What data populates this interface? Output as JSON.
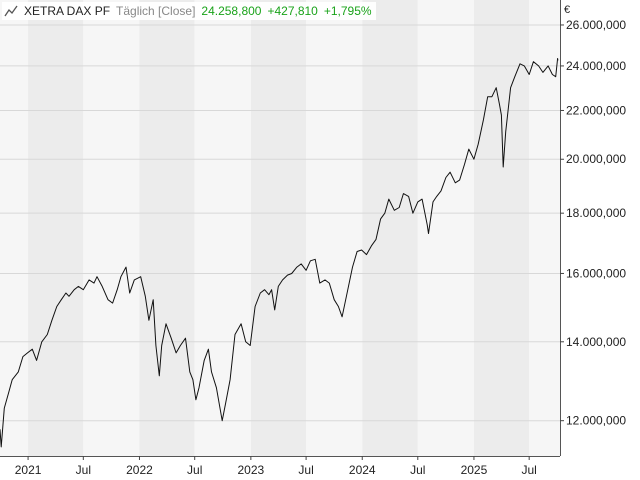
{
  "legend": {
    "icon": "line-chart-icon",
    "name": "XETRA DAX PF",
    "period": "Täglich [Close]",
    "value": "24.258,800",
    "change": "+427,810",
    "percent": "+1,795%"
  },
  "colors": {
    "band_dark": "#ececec",
    "band_light": "#f6f6f6",
    "line": "#111111",
    "grid": "#d8d8d8",
    "positive": "#1aa31a"
  },
  "chart_data": {
    "type": "line",
    "title": "",
    "xlabel": "",
    "ylabel": "€",
    "y_scale": "log",
    "ylim": [
      11200,
      27300
    ],
    "xlim": [
      "2020-10-01",
      "2025-10-10"
    ],
    "grid": true,
    "y_ticks": [
      {
        "value": 12000,
        "label": "12.000,000"
      },
      {
        "value": 14000,
        "label": "14.000,000"
      },
      {
        "value": 16000,
        "label": "16.000,000"
      },
      {
        "value": 18000,
        "label": "18.000,000"
      },
      {
        "value": 20000,
        "label": "20.000,000"
      },
      {
        "value": 22000,
        "label": "22.000,000"
      },
      {
        "value": 24000,
        "label": "24.000,000"
      },
      {
        "value": 26000,
        "label": "26.000,000"
      }
    ],
    "x_ticks": [
      {
        "date": "2021-01-01",
        "label": "2021"
      },
      {
        "date": "2021-07-01",
        "label": "Jul"
      },
      {
        "date": "2022-01-01",
        "label": "2022"
      },
      {
        "date": "2022-07-01",
        "label": "Jul"
      },
      {
        "date": "2023-01-01",
        "label": "2023"
      },
      {
        "date": "2023-07-01",
        "label": "Jul"
      },
      {
        "date": "2024-01-01",
        "label": "2024"
      },
      {
        "date": "2024-07-01",
        "label": "Jul"
      },
      {
        "date": "2025-01-01",
        "label": "2025"
      },
      {
        "date": "2025-07-01",
        "label": "Jul"
      }
    ],
    "series": [
      {
        "x": [
          "2020-10-01",
          "2020-10-05",
          "2020-10-15",
          "2020-10-30",
          "2020-11-10",
          "2020-11-30",
          "2020-12-15",
          "2020-12-30",
          "2021-01-15",
          "2021-01-29",
          "2021-02-15",
          "2021-03-05",
          "2021-03-20",
          "2021-04-05",
          "2021-04-20",
          "2021-05-05",
          "2021-05-15",
          "2021-06-01",
          "2021-06-15",
          "2021-07-01",
          "2021-07-20",
          "2021-08-05",
          "2021-08-15",
          "2021-09-01",
          "2021-09-20",
          "2021-10-05",
          "2021-10-20",
          "2021-11-01",
          "2021-11-18",
          "2021-11-30",
          "2021-12-15",
          "2022-01-05",
          "2022-01-20",
          "2022-02-01",
          "2022-02-15",
          "2022-02-24",
          "2022-03-07",
          "2022-03-15",
          "2022-03-29",
          "2022-04-15",
          "2022-05-01",
          "2022-05-15",
          "2022-06-01",
          "2022-06-15",
          "2022-06-25",
          "2022-07-05",
          "2022-07-15",
          "2022-08-01",
          "2022-08-15",
          "2022-08-25",
          "2022-09-10",
          "2022-09-29",
          "2022-10-10",
          "2022-10-25",
          "2022-11-10",
          "2022-11-30",
          "2022-12-15",
          "2022-12-30",
          "2023-01-15",
          "2023-02-01",
          "2023-02-15",
          "2023-03-01",
          "2023-03-10",
          "2023-03-20",
          "2023-04-01",
          "2023-04-15",
          "2023-05-01",
          "2023-05-15",
          "2023-06-01",
          "2023-06-15",
          "2023-07-01",
          "2023-07-15",
          "2023-07-31",
          "2023-08-15",
          "2023-09-01",
          "2023-09-15",
          "2023-10-01",
          "2023-10-15",
          "2023-10-27",
          "2023-11-10",
          "2023-11-30",
          "2023-12-15",
          "2023-12-30",
          "2024-01-15",
          "2024-02-01",
          "2024-02-15",
          "2024-03-01",
          "2024-03-15",
          "2024-03-28",
          "2024-04-15",
          "2024-05-01",
          "2024-05-15",
          "2024-06-01",
          "2024-06-15",
          "2024-07-01",
          "2024-07-15",
          "2024-08-01",
          "2024-08-05",
          "2024-08-20",
          "2024-09-01",
          "2024-09-15",
          "2024-10-01",
          "2024-10-15",
          "2024-11-01",
          "2024-11-15",
          "2024-12-01",
          "2024-12-15",
          "2025-01-01",
          "2025-01-15",
          "2025-02-01",
          "2025-02-15",
          "2025-03-01",
          "2025-03-15",
          "2025-03-25",
          "2025-04-01",
          "2025-04-07",
          "2025-04-15",
          "2025-05-01",
          "2025-05-15",
          "2025-06-01",
          "2025-06-15",
          "2025-07-01",
          "2025-07-15",
          "2025-08-01",
          "2025-08-15",
          "2025-09-01",
          "2025-09-15",
          "2025-09-26",
          "2025-10-02",
          "2025-10-03"
        ],
        "y": [
          11800,
          11400,
          12300,
          12700,
          13000,
          13200,
          13600,
          13700,
          13800,
          13500,
          14000,
          14200,
          14600,
          15000,
          15200,
          15400,
          15300,
          15500,
          15600,
          15500,
          15800,
          15700,
          15900,
          15600,
          15200,
          15100,
          15500,
          15900,
          16200,
          15400,
          15800,
          15900,
          15300,
          14600,
          15200,
          13900,
          13100,
          13900,
          14500,
          14100,
          13700,
          13900,
          14100,
          13200,
          13000,
          12500,
          12800,
          13500,
          13800,
          13200,
          12800,
          12000,
          12400,
          13000,
          14200,
          14500,
          14000,
          13900,
          15000,
          15400,
          15500,
          15350,
          15500,
          14900,
          15600,
          15800,
          15950,
          16000,
          16200,
          16300,
          16100,
          16400,
          16450,
          15700,
          15800,
          15700,
          15200,
          15000,
          14700,
          15300,
          16200,
          16700,
          16750,
          16600,
          16900,
          17100,
          17800,
          18000,
          18500,
          18100,
          18200,
          18700,
          18600,
          18000,
          18400,
          18500,
          17600,
          17300,
          18400,
          18600,
          18800,
          19300,
          19500,
          19100,
          19200,
          19800,
          20400,
          20000,
          20600,
          21600,
          22600,
          22600,
          23000,
          22300,
          21800,
          19700,
          21100,
          23000,
          23500,
          24100,
          24000,
          23600,
          24200,
          24000,
          23700,
          24000,
          23600,
          23500,
          24350,
          24258
        ]
      }
    ]
  }
}
